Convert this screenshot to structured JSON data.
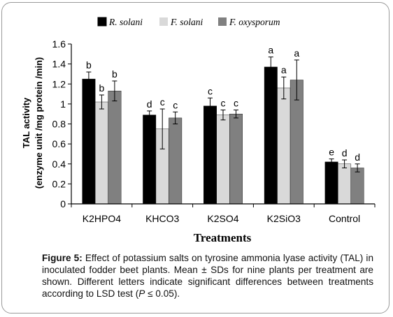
{
  "chart_data": {
    "type": "bar",
    "categories": [
      "K2HPO4",
      "KHCO3",
      "K2SO4",
      "K2SiO3",
      "Control"
    ],
    "series": [
      {
        "name": "R. solani",
        "color": "#000000",
        "values": [
          1.25,
          0.89,
          0.98,
          1.37,
          0.42
        ],
        "errors": [
          0.07,
          0.04,
          0.08,
          0.1,
          0.03
        ],
        "letters": [
          "b",
          "d",
          "c",
          "a",
          "e"
        ]
      },
      {
        "name": "F. solani",
        "color": "#d9d9d9",
        "values": [
          1.02,
          0.75,
          0.89,
          1.16,
          0.4
        ],
        "errors": [
          0.07,
          0.2,
          0.05,
          0.11,
          0.04
        ],
        "letters": [
          "b",
          "c",
          "c",
          "a",
          "d"
        ]
      },
      {
        "name": "F. oxysporum",
        "color": "#808080",
        "values": [
          1.13,
          0.86,
          0.9,
          1.24,
          0.36
        ],
        "errors": [
          0.1,
          0.06,
          0.04,
          0.2,
          0.04
        ],
        "letters": [
          "b",
          "c",
          "c",
          "a",
          "d"
        ]
      }
    ],
    "ylim": [
      0,
      1.6
    ],
    "yticks": [
      "0",
      "0.2",
      "0.4",
      "0.6",
      "0.8",
      "1",
      "1.2",
      "1.4",
      "1.6"
    ],
    "ylabel_line1": "TAL activity",
    "ylabel_line2": "(enzyme unit /mg protein /min)",
    "xlabel": "Treatments",
    "legend_position": "top",
    "grid": false
  },
  "caption": {
    "label": "Figure 5:",
    "part1": " Effect of potassium salts on tyrosine ammonia lyase activity (TAL) in inoculated fodder beet plants. Mean ± SDs for nine plants per treatment are shown. Different letters indicate significant differences between treatments according to LSD test (",
    "p_symbol": "P",
    "part2": " ≤ 0.05)."
  }
}
